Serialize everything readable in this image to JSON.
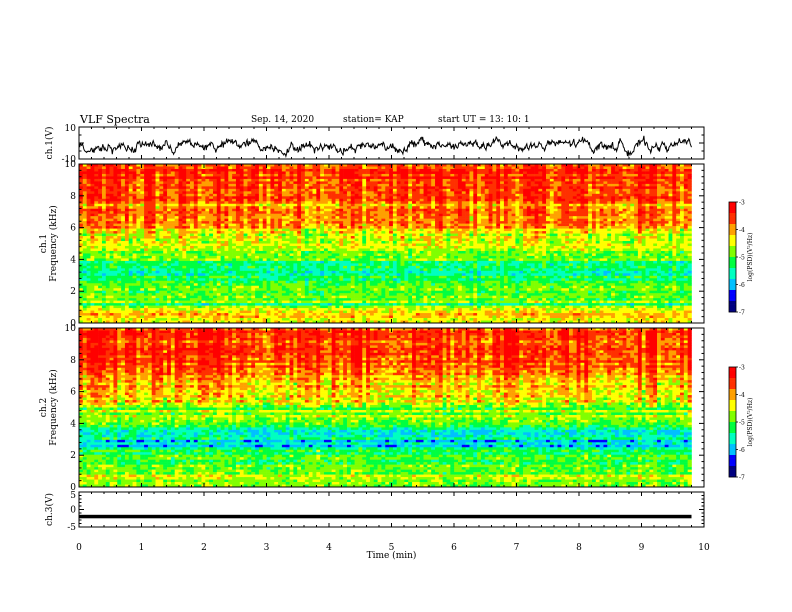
{
  "header": {
    "title": "VLF Spectra",
    "date": "Sep. 14, 2020",
    "station": "station= KAP",
    "start_time": "start  UT =   13: 10: 1"
  },
  "chart_data": [
    {
      "type": "line",
      "panel": "ch1-waveform",
      "ylabel": "ch.1(V)",
      "ylim": [
        -10,
        10
      ],
      "ytick_labels": [
        "10",
        "-10"
      ],
      "x_range": [
        0,
        9.8
      ],
      "description_values": {
        "baseline_V": -1.5,
        "amplitude_V": 4
      }
    },
    {
      "type": "heatmap",
      "panel": "ch1-spectrogram",
      "ylabel": "ch.1\nFrequency (kHz)",
      "ylim": [
        0,
        10
      ],
      "ytick_labels": [
        "0",
        "2",
        "4",
        "6",
        "8",
        "10"
      ],
      "x_range": [
        0,
        9.8
      ],
      "colorbar": {
        "label": "log(PSD)(V²/Hz)",
        "range": [
          -7,
          -3
        ],
        "tick_labels": [
          "-3",
          "-4",
          "-5",
          "-6",
          "-7"
        ]
      },
      "frequency_profile_logpsd": [
        [
          0,
          -4.5
        ],
        [
          0.5,
          -4.2
        ],
        [
          1,
          -4.6
        ],
        [
          1.5,
          -4.8
        ],
        [
          2,
          -4.9
        ],
        [
          2.5,
          -5.2
        ],
        [
          3,
          -5.4
        ],
        [
          3.5,
          -5.4
        ],
        [
          4,
          -5.0
        ],
        [
          4.5,
          -4.8
        ],
        [
          5,
          -4.5
        ],
        [
          6,
          -4.1
        ],
        [
          7,
          -3.8
        ],
        [
          8,
          -3.6
        ],
        [
          9,
          -3.5
        ],
        [
          10,
          -3.5
        ]
      ]
    },
    {
      "type": "heatmap",
      "panel": "ch2-spectrogram",
      "ylabel": "ch.2\nFrequency (kHz)",
      "ylim": [
        0,
        10
      ],
      "ytick_labels": [
        "0",
        "2",
        "4",
        "6",
        "8",
        "10"
      ],
      "x_range": [
        0,
        9.8
      ],
      "colorbar": {
        "label": "log(PSD)(V²/Hz)",
        "range": [
          -7,
          -3
        ],
        "tick_labels": [
          "-3",
          "-4",
          "-5",
          "-6",
          "-7"
        ]
      },
      "frequency_profile_logpsd": [
        [
          0,
          -4.8
        ],
        [
          0.5,
          -4.6
        ],
        [
          1,
          -4.9
        ],
        [
          1.5,
          -5.0
        ],
        [
          2,
          -5.1
        ],
        [
          2.5,
          -5.4
        ],
        [
          3,
          -5.6
        ],
        [
          3.5,
          -5.5
        ],
        [
          4,
          -5.1
        ],
        [
          4.5,
          -4.8
        ],
        [
          5,
          -4.5
        ],
        [
          6,
          -4.1
        ],
        [
          7,
          -3.8
        ],
        [
          8,
          -3.6
        ],
        [
          9,
          -3.5
        ],
        [
          10,
          -3.5
        ]
      ]
    },
    {
      "type": "line",
      "panel": "ch3-waveform",
      "ylabel": "ch.3(V)",
      "xlabel": "Time (min)",
      "ylim": [
        -5,
        5
      ],
      "ytick_labels": [
        "5",
        "0",
        "-5"
      ],
      "x_range": [
        0,
        9.8
      ],
      "xlim": [
        0,
        10
      ],
      "xtick_labels": [
        "0",
        "1",
        "2",
        "3",
        "4",
        "5",
        "6",
        "7",
        "8",
        "9",
        "10"
      ],
      "description_values": {
        "baseline_V": -2,
        "amplitude_V": 0.5
      }
    }
  ],
  "colors": {
    "colormap": [
      "#000080",
      "#0000ff",
      "#00c0ff",
      "#00ffc0",
      "#00ff40",
      "#80ff00",
      "#ffff00",
      "#ffa000",
      "#ff3000",
      "#ff0000",
      "#ffffff"
    ],
    "axis": "#000000",
    "trace": "#000000"
  }
}
